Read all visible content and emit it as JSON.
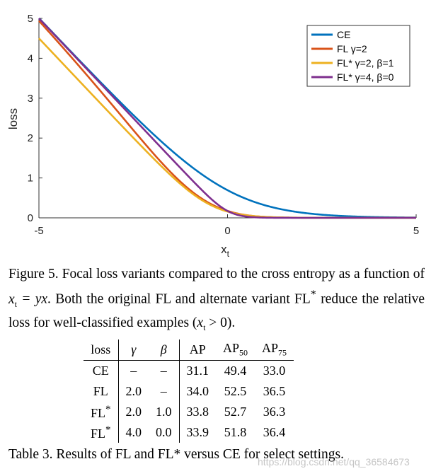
{
  "chart_data": {
    "type": "line",
    "xlabel": "x",
    "xlabel_sub": "t",
    "ylabel": "loss",
    "xlim": [
      -5,
      5
    ],
    "ylim": [
      0,
      5
    ],
    "xticks": [
      -5,
      0,
      5
    ],
    "yticks": [
      0,
      1,
      2,
      3,
      4,
      5
    ],
    "legend_position": "top-right",
    "series": [
      {
        "name": "CE",
        "color": "#0072BD",
        "kind": "ce"
      },
      {
        "name": "FL γ=2",
        "color": "#D95319",
        "kind": "fl",
        "gamma": 2
      },
      {
        "name": "FL* γ=2, β=1",
        "color": "#EDB120",
        "kind": "flstar",
        "gamma": 2,
        "beta": 1
      },
      {
        "name": "FL* γ=4, β=0",
        "color": "#7E2F8E",
        "kind": "flstar",
        "gamma": 4,
        "beta": 0
      }
    ]
  },
  "figure_caption": {
    "label": "Figure 5.",
    "part1": " Focal loss variants compared to the cross entropy as a function of ",
    "math1": "x",
    "math1_sub": "t",
    "math2": " = yx",
    "part2": ". Both the original FL and alternate variant FL",
    "star": "*",
    "part3": " reduce the relative loss for well-classified examples (",
    "math3": "x",
    "math3_sub": "t",
    "math4": " > 0",
    "part4": ")."
  },
  "table": {
    "headers": [
      "loss",
      "γ",
      "β",
      "AP",
      "AP",
      "AP"
    ],
    "header_subs": [
      "",
      "",
      "",
      "",
      "50",
      "75"
    ],
    "rows": [
      [
        "CE",
        "–",
        "–",
        "31.1",
        "49.4",
        "33.0"
      ],
      [
        "FL",
        "2.0",
        "–",
        "34.0",
        "52.5",
        "36.5"
      ],
      [
        "FL*",
        "2.0",
        "1.0",
        "33.8",
        "52.7",
        "36.3"
      ],
      [
        "FL*",
        "4.0",
        "0.0",
        "33.9",
        "51.8",
        "36.4"
      ]
    ]
  },
  "table_caption": {
    "label": "Table 3.",
    "text": " Results of FL and FL* versus CE for select settings."
  },
  "watermark": "https://blog.csdn.net/qq_36584673"
}
